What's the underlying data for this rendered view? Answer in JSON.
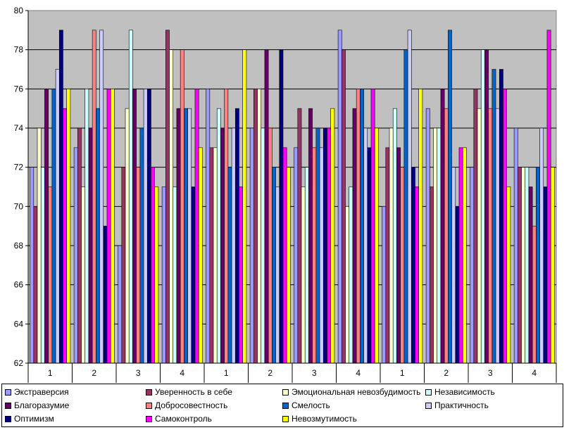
{
  "chart_data": {
    "type": "bar",
    "categories": [
      "1",
      "2",
      "3",
      "4",
      "1",
      "2",
      "3",
      "4",
      "1",
      "2",
      "3",
      "4"
    ],
    "ylim": [
      62,
      80
    ],
    "yticks": [
      62,
      64,
      66,
      68,
      70,
      72,
      74,
      76,
      78,
      80
    ],
    "grid": true,
    "plot_background": "#c0c0c0",
    "legend_position": "bottom",
    "series": [
      {
        "name": "Экстраверсия",
        "color": "#9999ff",
        "values": [
          72,
          73,
          68,
          71,
          76,
          74,
          73,
          79,
          70,
          75,
          72,
          74
        ]
      },
      {
        "name": "Уверенность в себе",
        "color": "#993366",
        "values": [
          70,
          74,
          72,
          79,
          73,
          76,
          75,
          78,
          73,
          71,
          76,
          72
        ]
      },
      {
        "name": "Эмоциональная невозбудимость",
        "color": "#ffffcc",
        "values": [
          74,
          71,
          75,
          78,
          73,
          76,
          71,
          70,
          74,
          74,
          75,
          72
        ]
      },
      {
        "name": "Независимость",
        "color": "#ccffff",
        "values": [
          72,
          76,
          79,
          71,
          75,
          74,
          72,
          71,
          75,
          74,
          78,
          72
        ]
      },
      {
        "name": "Благоразумие",
        "color": "#660066",
        "values": [
          76,
          74,
          76,
          75,
          74,
          78,
          75,
          75,
          73,
          76,
          78,
          71
        ]
      },
      {
        "name": "Добросовестность",
        "color": "#ff8080",
        "values": [
          71,
          79,
          72,
          78,
          76,
          74,
          73,
          76,
          72,
          75,
          75,
          69
        ]
      },
      {
        "name": "Смелость",
        "color": "#0066cc",
        "values": [
          76,
          75,
          74,
          75,
          72,
          72,
          74,
          76,
          78,
          79,
          77,
          72
        ]
      },
      {
        "name": "Практичность",
        "color": "#ccccff",
        "values": [
          77,
          79,
          76,
          75,
          74,
          71,
          73,
          74,
          79,
          72,
          75,
          74
        ]
      },
      {
        "name": "Оптимизм",
        "color": "#000080",
        "values": [
          79,
          69,
          76,
          71,
          75,
          78,
          74,
          73,
          72,
          70,
          77,
          71
        ]
      },
      {
        "name": "Самоконтроль",
        "color": "#ff00ff",
        "values": [
          75,
          76,
          72,
          76,
          71,
          73,
          74,
          76,
          71,
          73,
          76,
          79
        ]
      },
      {
        "name": "Невозмутимость",
        "color": "#ffff00",
        "values": [
          76,
          76,
          71,
          73,
          78,
          72,
          75,
          74,
          76,
          73,
          71,
          72
        ]
      }
    ]
  }
}
